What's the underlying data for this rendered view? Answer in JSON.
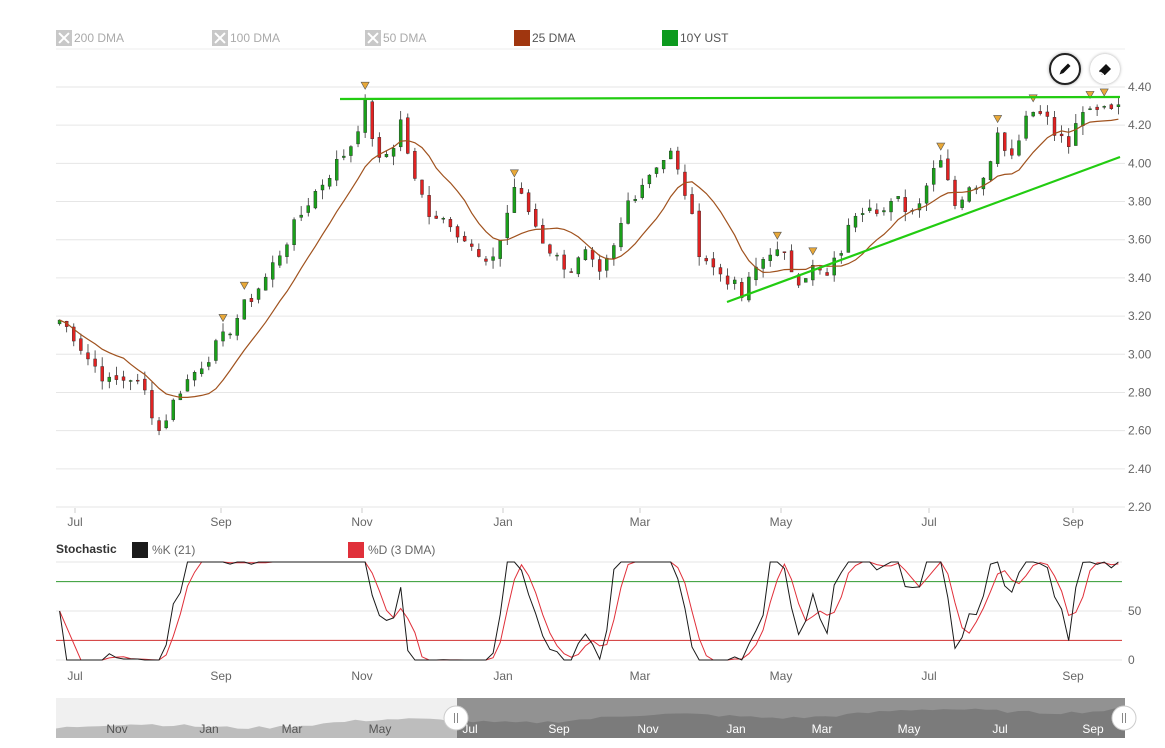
{
  "legend": [
    {
      "label": "200 DMA",
      "enabled": false,
      "color": "#c8c8c8"
    },
    {
      "label": "100 DMA",
      "enabled": false,
      "color": "#c8c8c8"
    },
    {
      "label": "50 DMA",
      "enabled": false,
      "color": "#c8c8c8"
    },
    {
      "label": "25 DMA",
      "enabled": true,
      "color": "#a0360f"
    },
    {
      "label": "10Y UST",
      "enabled": true,
      "color": "#0c9a1e"
    }
  ],
  "tools": {
    "pencil": "pencil-icon",
    "eraser": "eraser-icon"
  },
  "stochastic": {
    "title": "Stochastic",
    "k_label": "%K (21)",
    "d_label": "%D (3 DMA)",
    "k_color": "#1a1a1a",
    "d_color": "#e0303a",
    "axis_labels": [
      "50",
      "0"
    ]
  },
  "colors": {
    "up": "#1aa01a",
    "down": "#e02222",
    "ma": "#a0521e",
    "trend": "#22cc11",
    "marker": "#e8a838"
  },
  "chart_data": [
    {
      "type": "candlestick",
      "series_name": "10Y UST",
      "x_labels": [
        "Jul",
        "Sep",
        "Nov",
        "Jan",
        "Mar",
        "May",
        "Jul",
        "Sep"
      ],
      "y_ticks": [
        "4.40",
        "4.20",
        "4.00",
        "3.80",
        "3.60",
        "3.40",
        "3.20",
        "3.00",
        "2.80",
        "2.60",
        "2.40",
        "2.20"
      ],
      "ylim": [
        2.2,
        4.4
      ],
      "anchors_month_close": [
        [
          0,
          3.18
        ],
        [
          2,
          3.1
        ],
        [
          4,
          2.98
        ],
        [
          7,
          2.85
        ],
        [
          10,
          2.88
        ],
        [
          12,
          2.8
        ],
        [
          14,
          2.6
        ],
        [
          17,
          2.82
        ],
        [
          20,
          2.95
        ],
        [
          23,
          3.08
        ],
        [
          26,
          3.25
        ],
        [
          29,
          3.4
        ],
        [
          32,
          3.6
        ],
        [
          35,
          3.8
        ],
        [
          38,
          3.95
        ],
        [
          41,
          4.1
        ],
        [
          43,
          4.3
        ],
        [
          45,
          4.0
        ],
        [
          47,
          4.1
        ],
        [
          48,
          4.22
        ],
        [
          50,
          3.9
        ],
        [
          52,
          3.75
        ],
        [
          55,
          3.7
        ],
        [
          58,
          3.55
        ],
        [
          60,
          3.45
        ],
        [
          62,
          3.6
        ],
        [
          64,
          3.88
        ],
        [
          66,
          3.75
        ],
        [
          68,
          3.6
        ],
        [
          70,
          3.5
        ],
        [
          72,
          3.45
        ],
        [
          74,
          3.52
        ],
        [
          76,
          3.4
        ],
        [
          78,
          3.55
        ],
        [
          80,
          3.8
        ],
        [
          82,
          3.9
        ],
        [
          84,
          4.0
        ],
        [
          86,
          4.05
        ],
        [
          88,
          3.85
        ],
        [
          90,
          3.55
        ],
        [
          92,
          3.45
        ],
        [
          94,
          3.4
        ],
        [
          96,
          3.3
        ],
        [
          98,
          3.45
        ],
        [
          100,
          3.55
        ],
        [
          102,
          3.5
        ],
        [
          104,
          3.4
        ],
        [
          106,
          3.45
        ],
        [
          108,
          3.4
        ],
        [
          110,
          3.55
        ],
        [
          112,
          3.75
        ],
        [
          114,
          3.8
        ],
        [
          116,
          3.75
        ],
        [
          118,
          3.8
        ],
        [
          120,
          3.75
        ],
        [
          122,
          3.9
        ],
        [
          124,
          4.05
        ],
        [
          126,
          3.8
        ],
        [
          128,
          3.85
        ],
        [
          130,
          3.95
        ],
        [
          132,
          4.15
        ],
        [
          134,
          4.05
        ],
        [
          136,
          4.25
        ],
        [
          138,
          4.3
        ],
        [
          140,
          4.15
        ],
        [
          142,
          4.1
        ],
        [
          144,
          4.25
        ],
        [
          146,
          4.3
        ],
        [
          148,
          4.32
        ]
      ],
      "trendlines": [
        {
          "from": [
            "Oct",
            4.35
          ],
          "to": [
            "Sep",
            4.35
          ]
        },
        {
          "from": [
            "Apr",
            3.28
          ],
          "to": [
            "Oct",
            4.03
          ]
        }
      ],
      "moving_average": "25 DMA"
    },
    {
      "type": "line",
      "title": "Stochastic",
      "series": [
        {
          "name": "%K (21)"
        },
        {
          "name": "%D (3 DMA)"
        }
      ],
      "ylim": [
        0,
        100
      ],
      "reference_lines": [
        80,
        20
      ],
      "y_ticks": [
        "50",
        "0"
      ],
      "x_labels": [
        "Jul",
        "Sep",
        "Nov",
        "Jan",
        "Mar",
        "May",
        "Jul",
        "Sep"
      ]
    }
  ],
  "navigator": {
    "labels": [
      "Nov",
      "Jan",
      "Mar",
      "May",
      "Jul",
      "Sep",
      "Nov",
      "Jan",
      "Mar",
      "May",
      "Jul",
      "Sep"
    ]
  }
}
